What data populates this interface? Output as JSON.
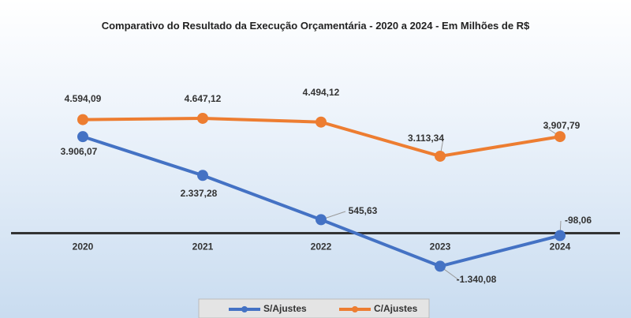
{
  "chart_data": {
    "type": "line",
    "title": "Comparativo do Resultado da Execução Orçamentária - 2020 a 2024 - Em Milhões de R$",
    "categories": [
      "2020",
      "2021",
      "2022",
      "2023",
      "2024"
    ],
    "series": [
      {
        "name": "S/Ajustes",
        "color": "#4472c4",
        "values": [
          3906.07,
          2337.28,
          545.63,
          -1340.08,
          -98.06
        ],
        "value_labels": [
          "3.906,07",
          "2.337,28",
          "545,63",
          "-1.340,08",
          "-98,06"
        ]
      },
      {
        "name": "C/Ajustes",
        "color": "#ed7d31",
        "values": [
          4594.09,
          4647.12,
          4494.12,
          3113.34,
          3907.79
        ],
        "value_labels": [
          "4.594,09",
          "4.647,12",
          "4.494,12",
          "3.113,34",
          "3.907,79"
        ]
      }
    ],
    "ylim": [
      -2700,
      7200
    ],
    "negative_label_color": "#ff0000",
    "legend": "bottom"
  }
}
